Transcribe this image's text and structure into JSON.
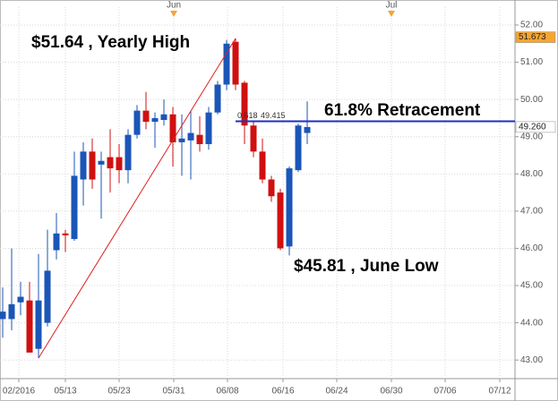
{
  "chart_data": {
    "type": "candlestick",
    "annotations": [
      {
        "text": "$51.64 , Yearly High"
      },
      {
        "text": "61.8% Retracement"
      },
      {
        "text": "$45.81 , June Low"
      }
    ],
    "x": [
      -7,
      -6,
      -5,
      -4,
      -3,
      -2,
      -1,
      0,
      1,
      2,
      3,
      4,
      5,
      6,
      7,
      8,
      9,
      10,
      11,
      12,
      13,
      14,
      15,
      16,
      17,
      18,
      19,
      20,
      21,
      22,
      23,
      24,
      25,
      26,
      27
    ],
    "open": [
      44.1,
      44.1,
      44.55,
      44.6,
      43.3,
      44.0,
      45.95,
      46.4,
      46.25,
      47.85,
      48.6,
      48.25,
      48.45,
      48.45,
      48.1,
      49.05,
      49.7,
      49.4,
      49.45,
      49.6,
      48.85,
      48.9,
      49.05,
      48.8,
      49.65,
      50.4,
      51.55,
      50.45,
      49.3,
      48.6,
      47.85,
      47.5,
      46.05,
      48.1,
      49.1
    ],
    "high": [
      44.95,
      46.0,
      45.1,
      45.1,
      45.85,
      46.5,
      46.95,
      46.5,
      48.6,
      48.85,
      48.95,
      48.6,
      49.2,
      48.8,
      49.2,
      49.85,
      50.2,
      49.65,
      50.0,
      49.8,
      49.6,
      49.7,
      49.55,
      49.8,
      50.5,
      51.6,
      51.64,
      50.5,
      49.4,
      48.95,
      47.95,
      47.6,
      48.2,
      49.35,
      49.95
    ],
    "low": [
      43.6,
      43.8,
      44.2,
      43.2,
      43.05,
      43.9,
      45.7,
      45.9,
      46.2,
      47.15,
      47.6,
      46.8,
      47.5,
      47.75,
      47.75,
      48.95,
      49.2,
      48.7,
      49.3,
      48.2,
      47.95,
      47.85,
      48.6,
      48.65,
      49.6,
      50.25,
      50.25,
      48.8,
      48.45,
      47.75,
      47.25,
      45.95,
      45.81,
      48.05,
      48.8
    ],
    "close": [
      44.3,
      44.5,
      44.7,
      43.2,
      44.6,
      45.4,
      46.4,
      46.35,
      47.95,
      48.6,
      47.85,
      48.35,
      48.15,
      48.1,
      49.05,
      49.7,
      49.4,
      49.5,
      49.6,
      48.85,
      48.95,
      49.1,
      48.8,
      49.65,
      50.4,
      51.5,
      50.4,
      49.3,
      48.6,
      47.85,
      47.4,
      46.0,
      48.15,
      49.3,
      49.26
    ],
    "up_color": "#1a56b8",
    "down_color": "#d01010",
    "xlim": [
      -7.3,
      50.2
    ],
    "xticks": [
      {
        "value": -5.2,
        "label": "02/2016"
      },
      {
        "value": 0,
        "label": "05/13"
      },
      {
        "value": 6,
        "label": "05/23"
      },
      {
        "value": 12.1,
        "label": "05/31"
      },
      {
        "value": 18.1,
        "label": "06/08"
      },
      {
        "value": 24.3,
        "label": "06/16"
      },
      {
        "value": 30.3,
        "label": "06/24"
      },
      {
        "value": 36.4,
        "label": "06/30"
      },
      {
        "value": 42.4,
        "label": "07/06"
      },
      {
        "value": 48.5,
        "label": "07/12"
      }
    ],
    "month_markers": [
      {
        "value": 12.1,
        "label": "Jun"
      },
      {
        "value": 36.4,
        "label": "Jul"
      }
    ],
    "ylim": [
      42.5,
      52.48
    ],
    "yticks": [
      {
        "value": 43,
        "label": "43.00"
      },
      {
        "value": 44,
        "label": "44.00"
      },
      {
        "value": 45,
        "label": "45.00"
      },
      {
        "value": 46,
        "label": "46.00"
      },
      {
        "value": 47,
        "label": "47.00"
      },
      {
        "value": 48,
        "label": "48.00"
      },
      {
        "value": 49,
        "label": "49.00"
      },
      {
        "value": 50,
        "label": "50.00"
      },
      {
        "value": 51,
        "label": "51.00"
      },
      {
        "value": 52,
        "label": "52.00"
      }
    ],
    "grid": true,
    "fib": {
      "ratio": 0.618,
      "value": 49.415,
      "color": "#1f2fbf",
      "trend_color": "#e02020"
    },
    "price_badges": [
      {
        "value": 51.673,
        "color": "#f7a531"
      },
      {
        "value": 49.26,
        "label": "49.260",
        "color": "#ffffff"
      }
    ]
  }
}
